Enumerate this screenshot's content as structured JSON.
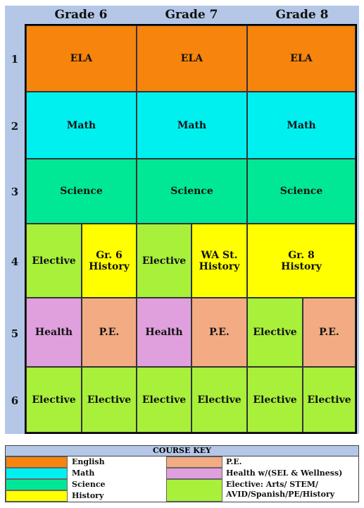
{
  "headers": [
    "Grade 6",
    "Grade 7",
    "Grade 8"
  ],
  "rows": [
    "1",
    "2",
    "3",
    "4",
    "5",
    "6"
  ],
  "colors": {
    "english": "#f7840c",
    "math": "#00f0f0",
    "science": "#00e896",
    "history": "#ffff00",
    "elective": "#a8f03a",
    "pe": "#f2ab82",
    "health": "#dfa0dd",
    "header_band": "#b4c7e7"
  },
  "cells": {
    "r1": [
      "ELA",
      "ELA",
      "ELA"
    ],
    "r2": [
      "Math",
      "Math",
      "Math"
    ],
    "r3": [
      "Science",
      "Science",
      "Science"
    ],
    "r4": [
      "Elective",
      "Gr. 6\nHistory",
      "Elective",
      "WA St.\nHistory",
      "Gr. 8\nHistory"
    ],
    "r5": [
      "Health",
      "P.E.",
      "Health",
      "P.E.",
      "Elective",
      "P.E."
    ],
    "r6": [
      "Elective",
      "Elective",
      "Elective",
      "Elective",
      "Elective",
      "Elective"
    ]
  },
  "key": {
    "title": "COURSE KEY",
    "left": [
      "English",
      "Math",
      "Science",
      "History"
    ],
    "right": [
      "P.E.",
      "Health w/(SEL & Wellness)",
      "Elective: Arts/ STEM/\nAVID/Spanish/PE/History"
    ]
  }
}
